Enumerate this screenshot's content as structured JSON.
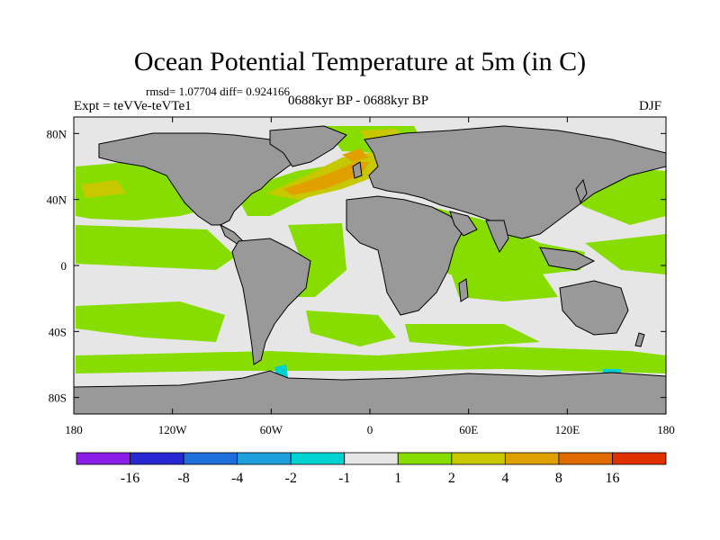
{
  "title": "Ocean Potential Temperature at 5m (in C)",
  "stats_line": "rmsd= 1.07704 diff= 0.924166",
  "experiment": "Expt = teVVe-teVTe1",
  "period": "0688kyr BP - 0688kyr BP",
  "season": "DJF",
  "colors": {
    "land": "#999999",
    "ocean_neutral": "#e6e6e6",
    "positive_1_2": "#88dd00",
    "positive_2_4": "#c8c800",
    "positive_4_8": "#e0a000",
    "positive_8_16": "#e06a00",
    "negative_cyan": "#00d0d0"
  },
  "chart_data": {
    "type": "heatmap",
    "projection": "cylindrical equidistant",
    "x_range": [
      -180,
      180
    ],
    "y_range": [
      -90,
      90
    ],
    "x_tick_labels": [
      "180",
      "120W",
      "60W",
      "0",
      "60E",
      "120E",
      "180"
    ],
    "x_tick_values": [
      -180,
      -120,
      -60,
      0,
      60,
      120,
      180
    ],
    "y_tick_labels": [
      "80N",
      "40N",
      "0",
      "40S",
      "80S"
    ],
    "y_tick_values": [
      80,
      40,
      0,
      -40,
      -80
    ],
    "colorbar": {
      "levels": [
        -16,
        -8,
        -4,
        -2,
        -1,
        1,
        2,
        4,
        8,
        16
      ],
      "labels": [
        "-16",
        "-8",
        "-4",
        "-2",
        "-1",
        "1",
        "2",
        "4",
        "8",
        "16"
      ],
      "colors": [
        "#8a1ee6",
        "#2828d2",
        "#1e6edc",
        "#1ea0dc",
        "#00d2d2",
        "#e6e6e6",
        "#88dd00",
        "#c8c800",
        "#e0a000",
        "#e06a00",
        "#e03000"
      ]
    }
  }
}
